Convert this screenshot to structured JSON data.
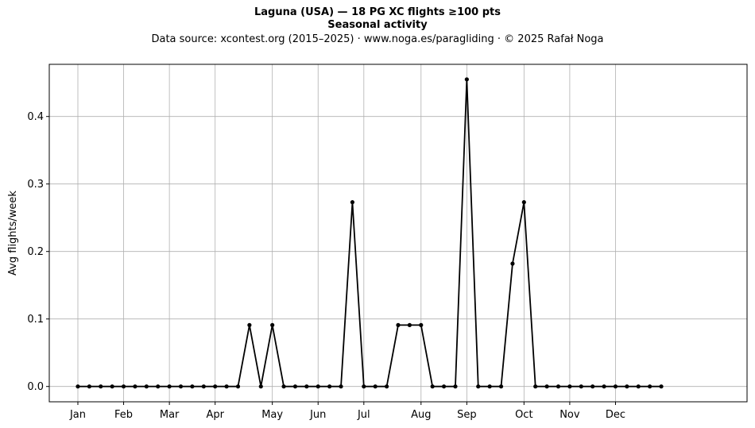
{
  "header": {
    "title": "Laguna (USA)  —  18 PG XC flights ≥100 pts",
    "subtitle": "Seasonal activity",
    "source": "Data source: xcontest.org (2015–2025)  ·  www.noga.es/paragliding  ·  © 2025 Rafał Noga"
  },
  "chart_data": {
    "type": "line",
    "title": "Laguna (USA)  —  18 PG XC flights ≥100 pts",
    "subtitle": "Seasonal activity",
    "xlabel": "",
    "ylabel": "Avg flights/week",
    "xlim": [
      -2.5,
      58.5
    ],
    "ylim": [
      -0.0227,
      0.4773
    ],
    "grid": true,
    "series_color": "#000000",
    "month_ticks": [
      {
        "label": "Jan",
        "week": 0
      },
      {
        "label": "Feb",
        "week": 4
      },
      {
        "label": "Mar",
        "week": 8
      },
      {
        "label": "Apr",
        "week": 12
      },
      {
        "label": "May",
        "week": 17
      },
      {
        "label": "Jun",
        "week": 21
      },
      {
        "label": "Jul",
        "week": 25
      },
      {
        "label": "Aug",
        "week": 30
      },
      {
        "label": "Sep",
        "week": 34
      },
      {
        "label": "Oct",
        "week": 39
      },
      {
        "label": "Nov",
        "week": 43
      },
      {
        "label": "Dec",
        "week": 47
      }
    ],
    "yticks": [
      {
        "label": "0.0",
        "value": 0
      },
      {
        "label": "0.1",
        "value": 0.1
      },
      {
        "label": "0.2",
        "value": 0.2
      },
      {
        "label": "0.3",
        "value": 0.3
      },
      {
        "label": "0.4",
        "value": 0.4
      }
    ],
    "values": [
      0,
      0,
      0,
      0,
      0,
      0,
      0,
      0,
      0,
      0,
      0,
      0,
      0,
      0,
      0,
      0.091,
      0,
      0.091,
      0,
      0,
      0,
      0,
      0,
      0,
      0.273,
      0,
      0,
      0,
      0.091,
      0.091,
      0.091,
      0,
      0,
      0,
      0.455,
      0,
      0,
      0,
      0.182,
      0.273,
      0,
      0,
      0,
      0,
      0,
      0,
      0,
      0,
      0,
      0,
      0,
      0
    ]
  }
}
